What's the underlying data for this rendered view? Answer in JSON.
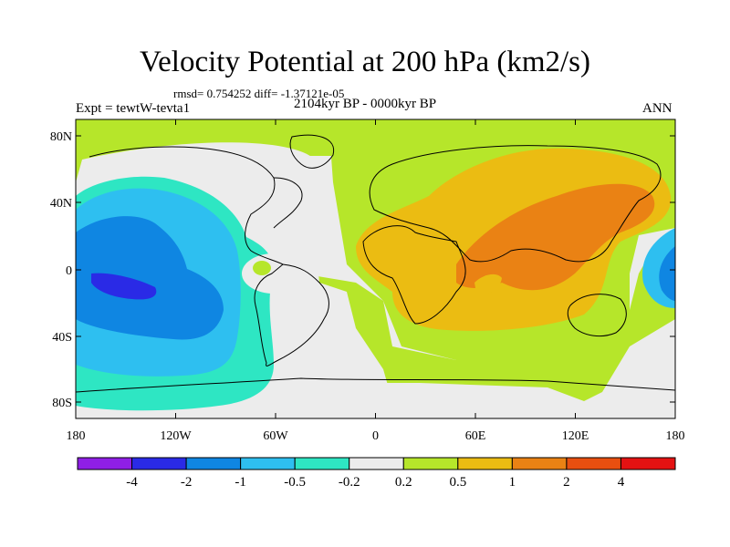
{
  "title": "Velocity Potential at 200 hPa (km2/s)",
  "stats": "rmsd= 0.754252 diff= -1.37121e-05",
  "left_label": "Expt = tewtW-tevta1",
  "center_label": "2104kyr BP - 0000kyr BP",
  "right_label": "ANN",
  "lat_ticks": [
    "80N",
    "40N",
    "0",
    "40S",
    "80S"
  ],
  "lon_ticks": [
    "180",
    "120W",
    "60W",
    "0",
    "60E",
    "120E",
    "180"
  ],
  "colorbar": {
    "colors": [
      "#8f1fe6",
      "#2a2ae6",
      "#0f86e2",
      "#2ebff0",
      "#2ee6c3",
      "#ececec",
      "#b6e62a",
      "#ebbc12",
      "#ea8214",
      "#e84f10",
      "#e41212"
    ],
    "labels": [
      "-4",
      "-2",
      "-1",
      "-0.5",
      "-0.2",
      "0.2",
      "0.5",
      "1",
      "2",
      "4"
    ]
  },
  "legend_colors": {
    "strong_negative": "#2a2ae6",
    "negative": "#0f86e2",
    "weak_negative": "#2ebff0",
    "near_zero_negative": "#2ee6c3",
    "zero": "#ececec",
    "weak_positive": "#b6e62a",
    "positive": "#ebbc12",
    "strong_positive": "#ea8214"
  }
}
